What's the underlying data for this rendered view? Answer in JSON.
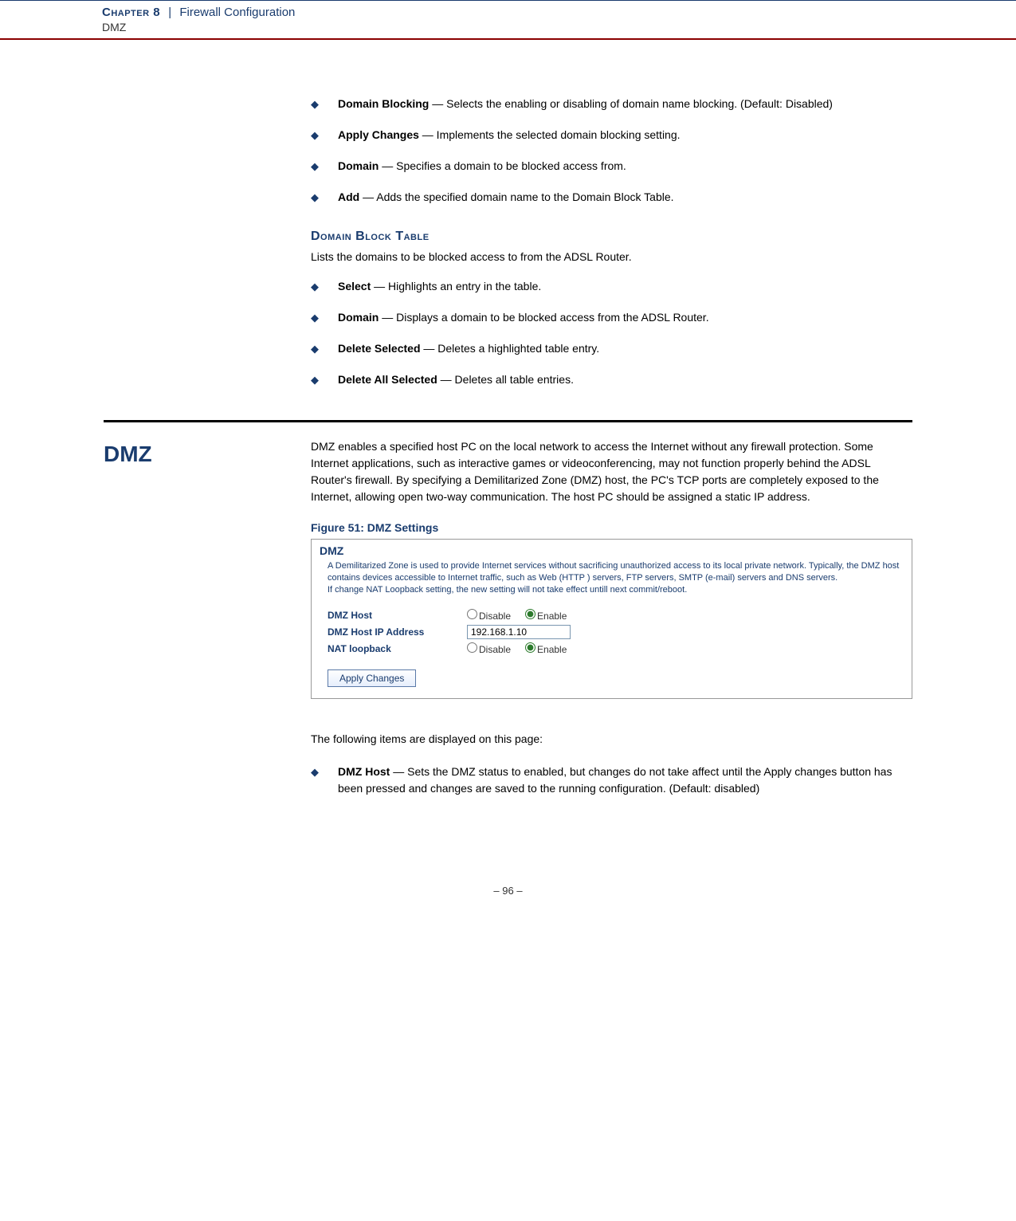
{
  "header": {
    "chapter_label": "Chapter 8",
    "separator": "|",
    "chapter_title": "Firewall Configuration",
    "subtitle": "DMZ"
  },
  "top_bullets": [
    {
      "term": "Domain Blocking",
      "text": " — Selects the enabling or disabling of domain name blocking. (Default: Disabled)"
    },
    {
      "term": "Apply Changes",
      "text": " — Implements the selected domain blocking setting."
    },
    {
      "term": "Domain",
      "text": " — Specifies a domain to be blocked access from."
    },
    {
      "term": "Add",
      "text": " — Adds the specified domain name to the Domain Block Table."
    }
  ],
  "domain_block": {
    "heading": "Domain Block Table",
    "lead": "Lists the domains to be blocked access to from the ADSL Router.",
    "bullets": [
      {
        "term": "Select",
        "text": " — Highlights an entry in the table."
      },
      {
        "term": "Domain",
        "text": " — Displays a domain to be blocked access from the ADSL Router."
      },
      {
        "term": "Delete Selected",
        "text": " — Deletes a highlighted table entry."
      },
      {
        "term": "Delete All Selected",
        "text": " — Deletes all table entries."
      }
    ]
  },
  "dmz": {
    "heading": "DMZ",
    "para": "DMZ enables a specified host PC on the local network to access the Internet without any firewall protection. Some Internet applications, such as interactive games or videoconferencing, may not function properly behind the ADSL Router's firewall. By specifying a Demilitarized Zone (DMZ) host, the PC's TCP ports are completely exposed to the Internet, allowing open two-way communication. The host PC should be assigned a static IP address.",
    "fig_caption": "Figure 51:  DMZ Settings",
    "screenshot": {
      "title": "DMZ",
      "desc_l1": "A Demilitarized Zone is used to provide Internet services without sacrificing unauthorized access to its local private network. Typically, the DMZ host contains devices accessible to Internet traffic, such as Web (HTTP ) servers, FTP servers, SMTP (e-mail) servers and DNS servers.",
      "desc_l2": "If change NAT Loopback setting, the new setting will not take effect untill next commit/reboot.",
      "rows": {
        "dmz_host": {
          "label": "DMZ Host",
          "opt_disable": "Disable",
          "opt_enable": "Enable",
          "value": "enable"
        },
        "ip": {
          "label": "DMZ Host IP Address",
          "value": "192.168.1.10"
        },
        "nat": {
          "label": "NAT loopback",
          "opt_disable": "Disable",
          "opt_enable": "Enable",
          "value": "enable"
        }
      },
      "button": "Apply Changes"
    },
    "follow_text": "The following items are displayed on this page:",
    "bottom_bullets": [
      {
        "term": "DMZ Host",
        "text": " — Sets the DMZ status to enabled, but changes do not take affect until the Apply changes button has been pressed and changes are saved to the running configuration. (Default: disabled)"
      }
    ]
  },
  "footer": "–  96  –"
}
